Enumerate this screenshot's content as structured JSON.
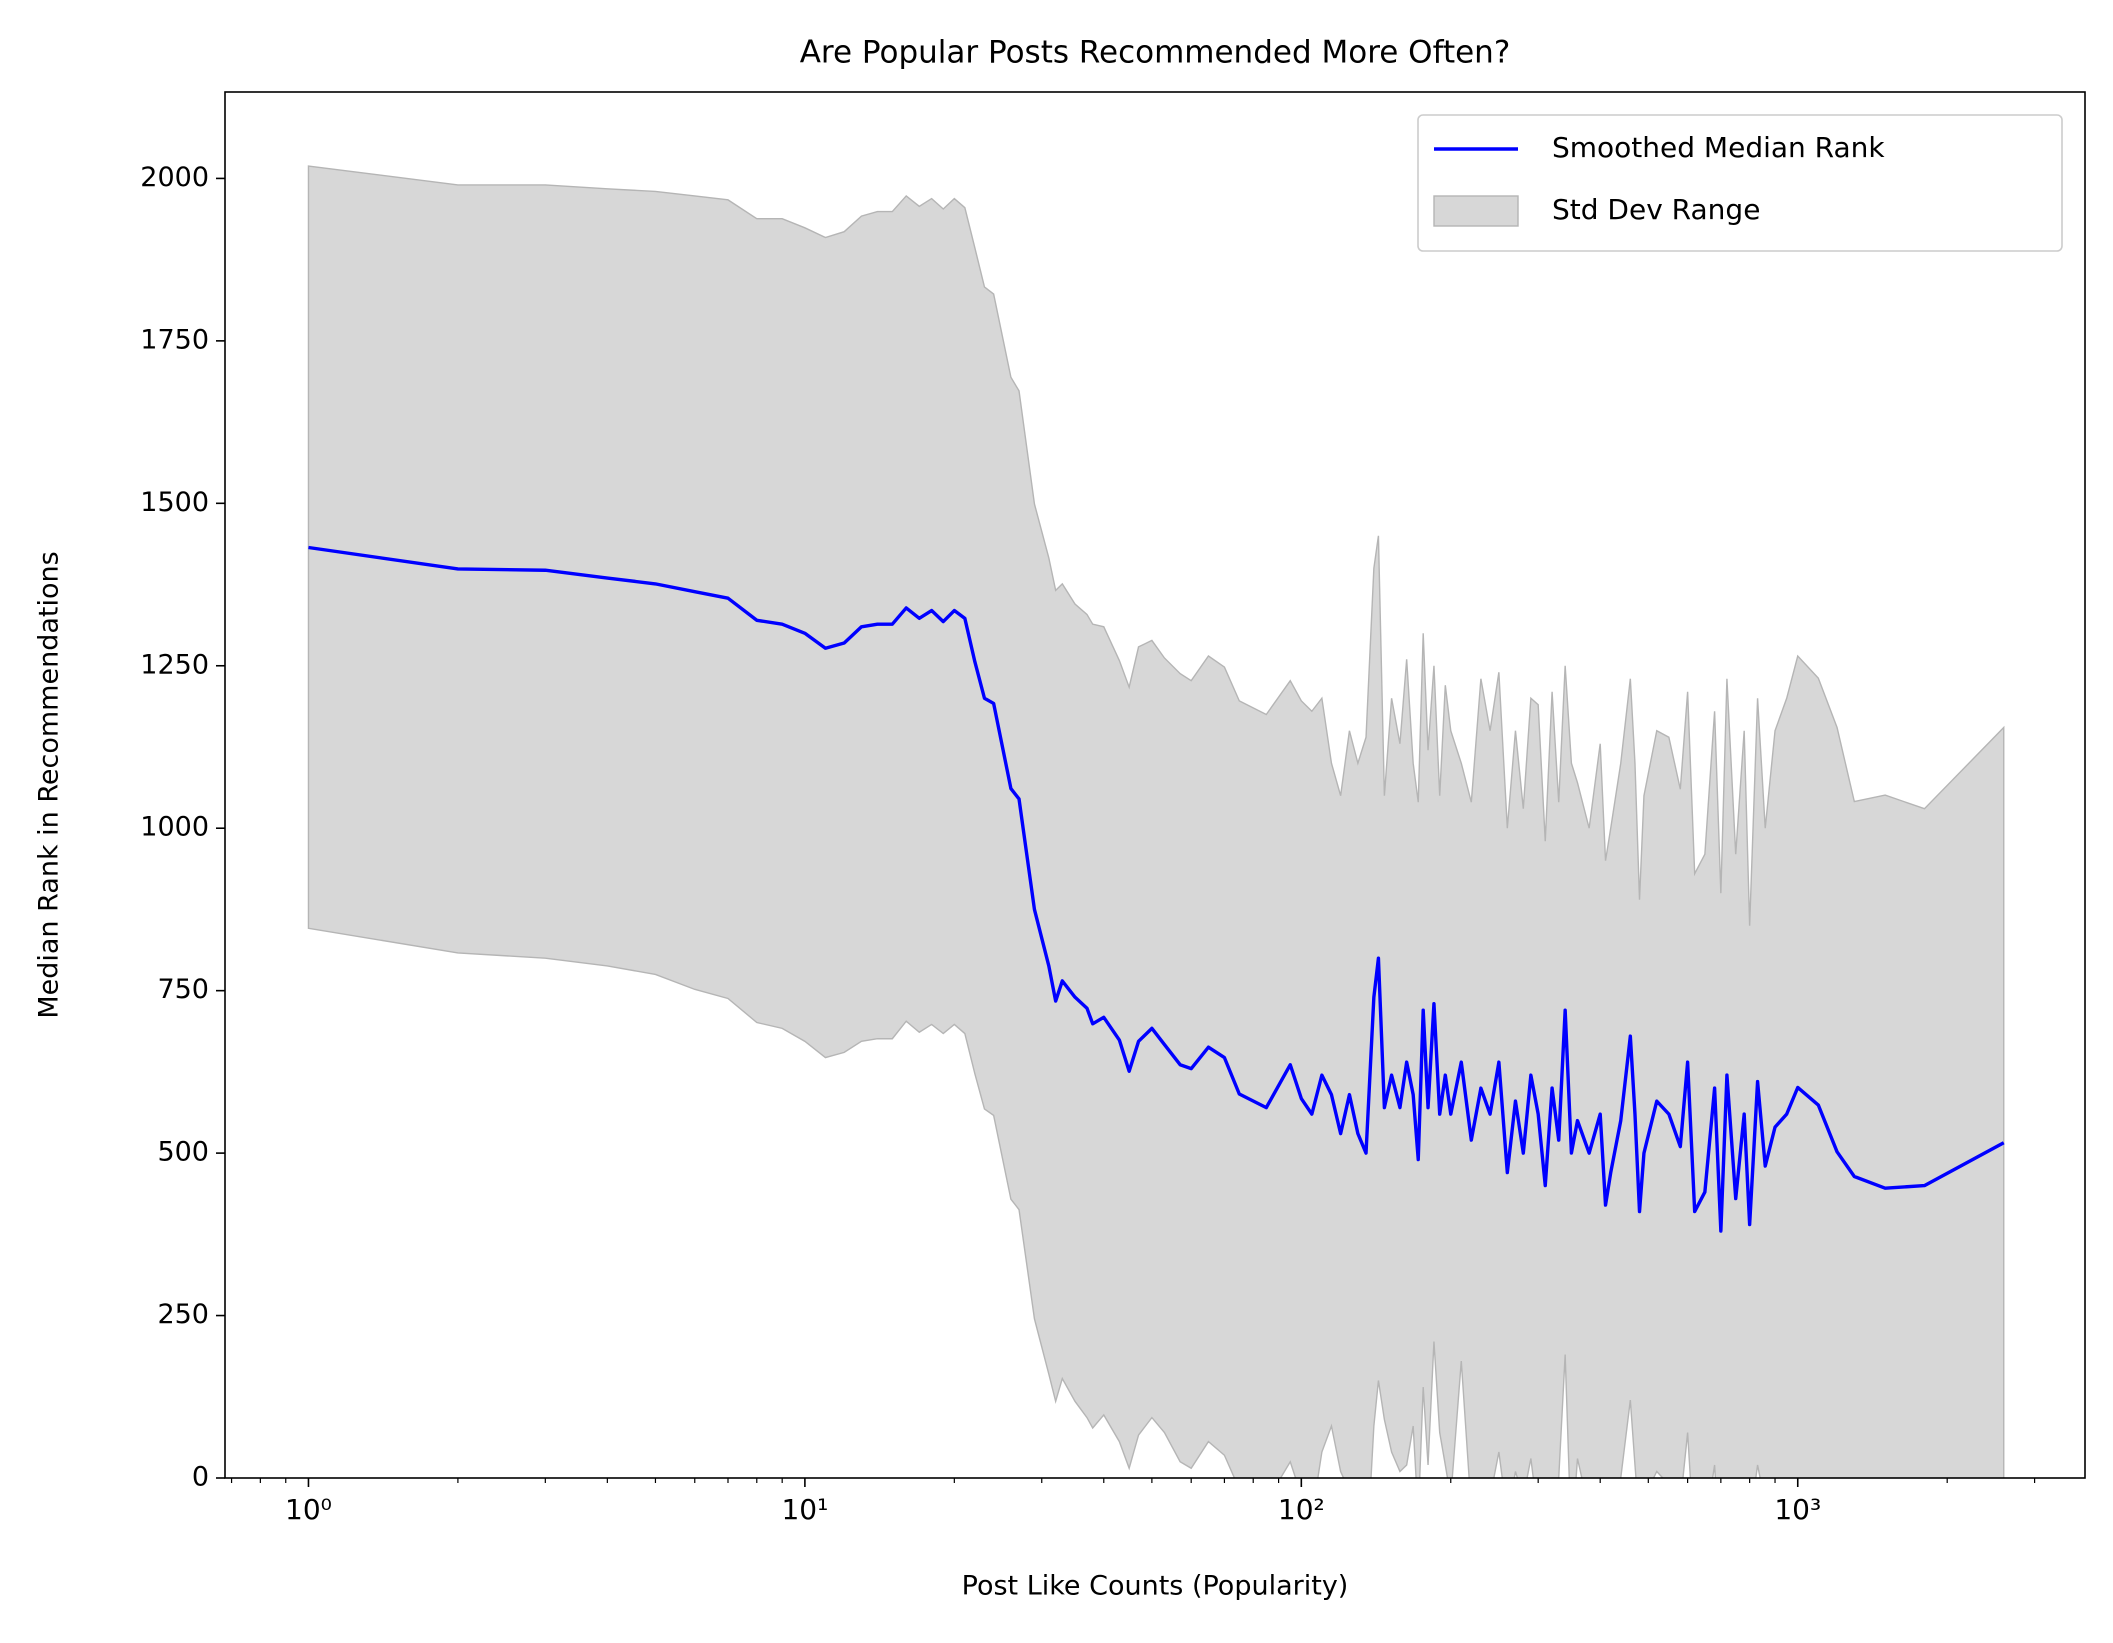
{
  "chart_data": {
    "type": "line",
    "title": "Are Popular Posts Recommended More Often?",
    "xlabel": "Post Like Counts (Popularity)",
    "ylabel": "Median Rank in Recommendations",
    "xscale": "log",
    "xlim": [
      0.679,
      3790
    ],
    "ylim": [
      0,
      2133
    ],
    "xticks": [
      {
        "value": 1,
        "label": "10⁰"
      },
      {
        "value": 10,
        "label": "10¹"
      },
      {
        "value": 100,
        "label": "10²"
      },
      {
        "value": 1000,
        "label": "10³"
      }
    ],
    "xminorticks": [
      0.7,
      0.8,
      0.9,
      2,
      3,
      4,
      5,
      6,
      7,
      8,
      9,
      20,
      30,
      40,
      50,
      60,
      70,
      80,
      90,
      200,
      300,
      400,
      500,
      600,
      700,
      800,
      900,
      2000,
      3000
    ],
    "yticks": [
      0,
      250,
      500,
      750,
      1000,
      1250,
      1500,
      1750,
      2000
    ],
    "legend": "upper right",
    "x": [
      1,
      2,
      3,
      4,
      5,
      6,
      7,
      8,
      9,
      10,
      11,
      12,
      13,
      14,
      15,
      16,
      17,
      18,
      19,
      20,
      21,
      22,
      23,
      24,
      26,
      27,
      29,
      31,
      32,
      33,
      35,
      37,
      38,
      40,
      43,
      45,
      47,
      50,
      53,
      57,
      60,
      65,
      70,
      75,
      85,
      95,
      100,
      105,
      110,
      115,
      120,
      125,
      130,
      135,
      140,
      143,
      147,
      152,
      158,
      163,
      168,
      172,
      176,
      180,
      185,
      190,
      195,
      200,
      210,
      220,
      230,
      240,
      250,
      260,
      270,
      280,
      290,
      300,
      310,
      320,
      330,
      340,
      350,
      360,
      380,
      400,
      410,
      420,
      440,
      460,
      470,
      480,
      490,
      520,
      550,
      580,
      600,
      620,
      650,
      680,
      700,
      720,
      750,
      780,
      800,
      830,
      860,
      900,
      950,
      1000,
      1100,
      1200,
      1300,
      1500,
      1800,
      2600
    ],
    "series": [
      {
        "name": "Smoothed Median Rank",
        "color": "#0000ff",
        "values": [
          1432,
          1399,
          1397,
          1385,
          1376,
          1364,
          1354,
          1320,
          1314,
          1300,
          1277,
          1285,
          1310,
          1314,
          1314,
          1339,
          1323,
          1335,
          1318,
          1335,
          1323,
          1256,
          1200,
          1192,
          1061,
          1045,
          875,
          788,
          734,
          765,
          740,
          723,
          699,
          709,
          674,
          626,
          672,
          692,
          667,
          636,
          630,
          663,
          647,
          591,
          570,
          636,
          584,
          560,
          620,
          590,
          530,
          590,
          530,
          500,
          740,
          800,
          570,
          620,
          570,
          640,
          590,
          490,
          720,
          570,
          730,
          560,
          620,
          560,
          640,
          520,
          600,
          560,
          640,
          470,
          580,
          500,
          620,
          560,
          450,
          600,
          520,
          720,
          500,
          550,
          500,
          560,
          420,
          470,
          550,
          680,
          560,
          410,
          500,
          580,
          560,
          510,
          640,
          410,
          440,
          600,
          380,
          620,
          430,
          560,
          390,
          610,
          480,
          540,
          560,
          601,
          574,
          502,
          464,
          446,
          450,
          516
        ]
      }
    ],
    "fill": {
      "name": "Std Dev Range",
      "color": "#d7d7d7",
      "edgecolor": "#b5b5b5",
      "upper": [
        2019,
        1990,
        1990,
        1984,
        1980,
        1973,
        1967,
        1938,
        1938,
        1924,
        1909,
        1918,
        1942,
        1949,
        1949,
        1973,
        1957,
        1969,
        1953,
        1969,
        1955,
        1893,
        1833,
        1822,
        1694,
        1673,
        1499,
        1416,
        1366,
        1376,
        1345,
        1329,
        1314,
        1310,
        1258,
        1217,
        1279,
        1289,
        1262,
        1238,
        1227,
        1265,
        1248,
        1196,
        1175,
        1227,
        1196,
        1180,
        1200,
        1100,
        1050,
        1150,
        1100,
        1140,
        1400,
        1450,
        1050,
        1200,
        1130,
        1260,
        1100,
        1040,
        1300,
        1120,
        1250,
        1050,
        1220,
        1150,
        1100,
        1040,
        1230,
        1150,
        1240,
        1000,
        1150,
        1030,
        1200,
        1190,
        980,
        1210,
        1040,
        1250,
        1100,
        1070,
        1000,
        1130,
        950,
        1000,
        1100,
        1230,
        1100,
        890,
        1050,
        1150,
        1140,
        1060,
        1210,
        930,
        960,
        1180,
        900,
        1230,
        960,
        1150,
        850,
        1200,
        1000,
        1150,
        1200,
        1265,
        1231,
        1155,
        1041,
        1051,
        1030,
        1155
      ],
      "lower": [
        846,
        808,
        800,
        788,
        775,
        752,
        738,
        701,
        692,
        672,
        647,
        655,
        672,
        676,
        676,
        703,
        686,
        698,
        684,
        698,
        684,
        622,
        568,
        558,
        429,
        413,
        245,
        160,
        118,
        153,
        118,
        93,
        77,
        97,
        56,
        15,
        66,
        93,
        70,
        25,
        15,
        56,
        35,
        -17,
        -37,
        25,
        -27,
        -60,
        40,
        80,
        10,
        -20,
        -40,
        -140,
        80,
        150,
        90,
        40,
        10,
        20,
        80,
        -60,
        140,
        20,
        210,
        70,
        20,
        -30,
        180,
        -50,
        -20,
        -30,
        40,
        -60,
        10,
        -30,
        30,
        -60,
        -80,
        0,
        0,
        190,
        -100,
        30,
        -50,
        -10,
        -110,
        -60,
        0,
        120,
        20,
        -70,
        -30,
        10,
        -10,
        -40,
        70,
        -110,
        -80,
        20,
        -140,
        -20,
        -100,
        -30,
        -70,
        20,
        -40,
        -70,
        -80,
        -70,
        -60,
        -60,
        -70,
        -80,
        -90,
        -120
      ]
    }
  }
}
